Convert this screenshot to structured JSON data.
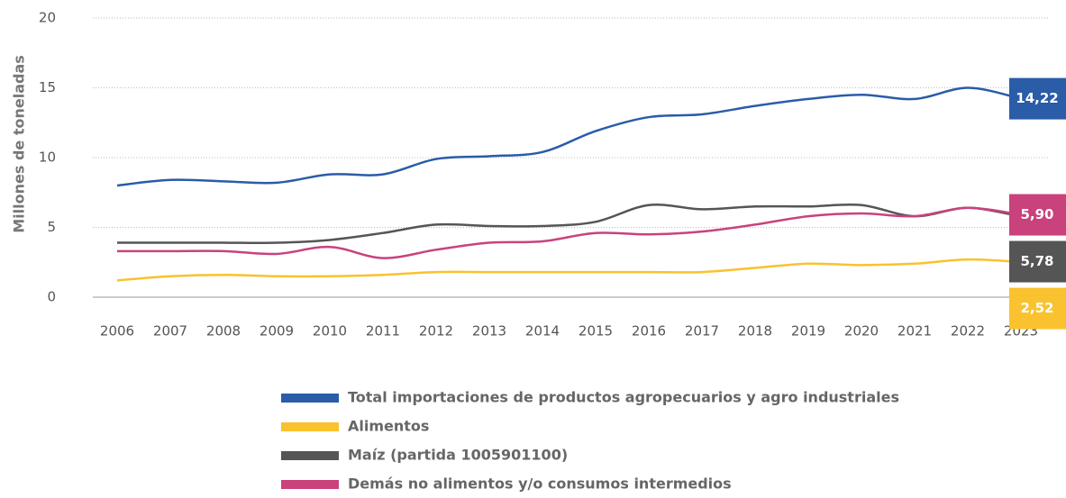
{
  "chart_data": {
    "type": "line",
    "y_label": "Millones de toneladas",
    "categories": [
      "2006",
      "2007",
      "2008",
      "2009",
      "2010",
      "2011",
      "2012",
      "2013",
      "2014",
      "2015",
      "2016",
      "2017",
      "2018",
      "2019",
      "2020",
      "2021",
      "2022",
      "2023"
    ],
    "ylim": [
      0,
      20
    ],
    "yticks": [
      0,
      5,
      10,
      15,
      20
    ],
    "grid": true,
    "series": [
      {
        "name": "Total importaciones de productos agropecuarios y agro industriales",
        "color": "#2a5ca8",
        "values": [
          8.0,
          8.4,
          8.3,
          8.2,
          8.8,
          8.8,
          9.9,
          10.1,
          10.4,
          11.9,
          12.9,
          13.1,
          13.7,
          14.2,
          14.5,
          14.2,
          15.0,
          14.22
        ],
        "value_labels": [
          null,
          null,
          null,
          null,
          null,
          null,
          null,
          null,
          null,
          null,
          null,
          null,
          null,
          null,
          null,
          null,
          null,
          "14,22"
        ]
      },
      {
        "name": "Alimentos",
        "color": "#f9c22e",
        "values": [
          1.2,
          1.5,
          1.6,
          1.5,
          1.5,
          1.6,
          1.8,
          1.8,
          1.8,
          1.8,
          1.8,
          1.8,
          2.1,
          2.4,
          2.3,
          2.4,
          2.7,
          2.52
        ],
        "value_labels": [
          null,
          null,
          null,
          null,
          null,
          null,
          null,
          null,
          null,
          null,
          null,
          null,
          null,
          null,
          null,
          null,
          null,
          "2,52"
        ]
      },
      {
        "name": "Maíz (partida 1005901100)",
        "color": "#555555",
        "values": [
          3.9,
          3.9,
          3.9,
          3.9,
          4.1,
          4.6,
          5.2,
          5.1,
          5.1,
          5.4,
          6.6,
          6.3,
          6.5,
          6.5,
          6.6,
          5.8,
          6.4,
          5.78
        ],
        "value_labels": [
          null,
          null,
          null,
          null,
          null,
          null,
          null,
          null,
          null,
          null,
          null,
          null,
          null,
          null,
          null,
          null,
          null,
          "5,78"
        ]
      },
      {
        "name": "Demás no alimentos y/o consumos intermedios",
        "color": "#c9427c",
        "values": [
          3.3,
          3.3,
          3.3,
          3.1,
          3.6,
          2.8,
          3.4,
          3.9,
          4.0,
          4.6,
          4.5,
          4.7,
          5.2,
          5.8,
          6.0,
          5.8,
          6.4,
          5.9
        ],
        "value_labels": [
          null,
          null,
          null,
          null,
          null,
          null,
          null,
          null,
          null,
          null,
          null,
          null,
          null,
          null,
          null,
          null,
          null,
          "5,90"
        ]
      }
    ]
  }
}
